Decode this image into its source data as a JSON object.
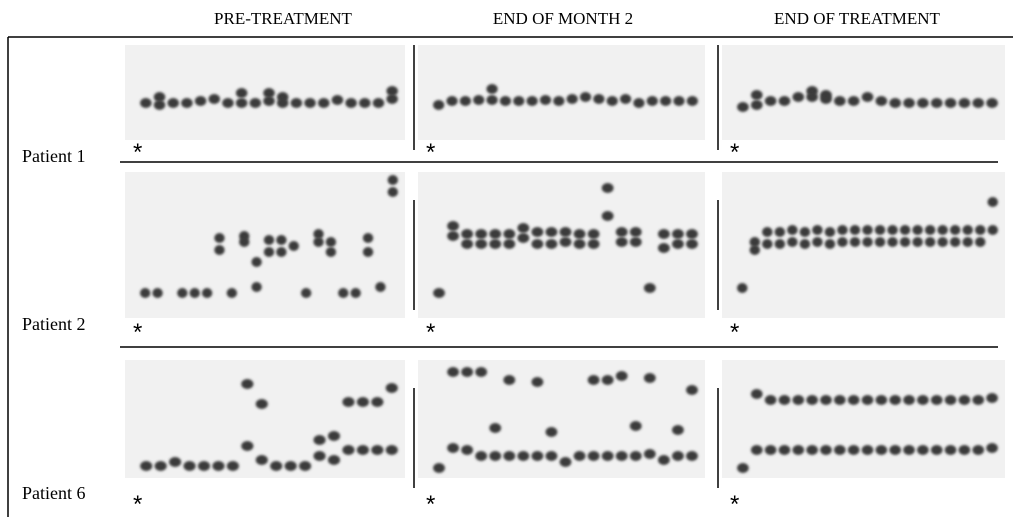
{
  "header": {
    "columns": [
      "PRE-TREATMENT",
      "END OF MONTH 2",
      "END OF TREATMENT"
    ]
  },
  "rows": [
    {
      "label": "Patient 1",
      "marker": "*"
    },
    {
      "label": "Patient 2",
      "marker": "*"
    },
    {
      "label": "Patient 6",
      "marker": "*"
    }
  ]
}
